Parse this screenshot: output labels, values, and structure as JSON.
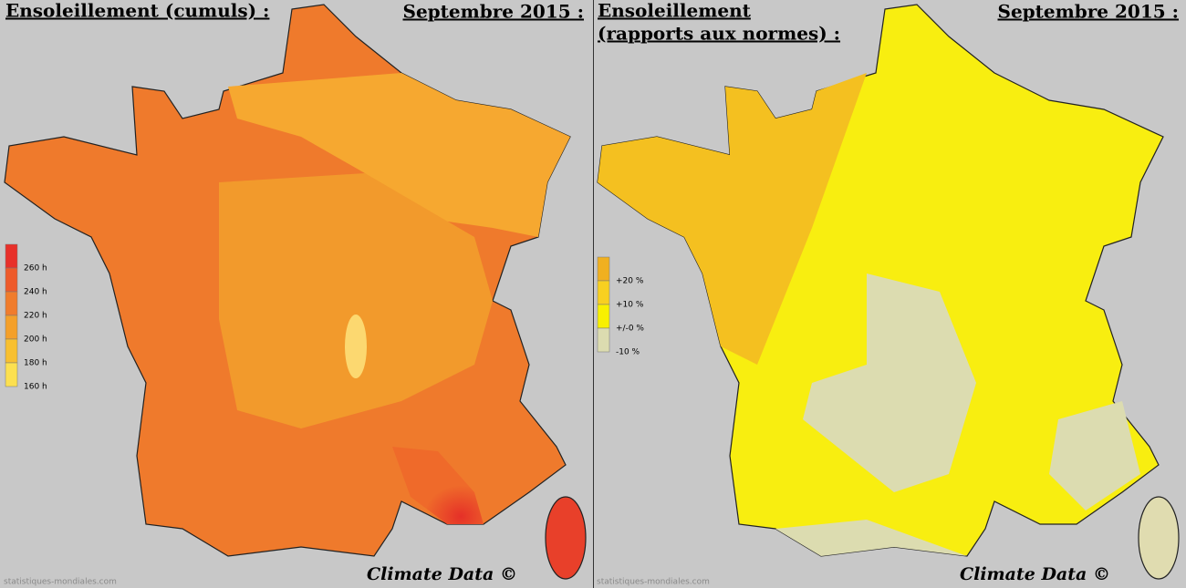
{
  "panels": [
    {
      "title": "Ensoleillement (cumuls) :",
      "date": "Septembre 2015 :",
      "credit": "Climate Data ©",
      "watermark": "statistiques-mondiales.com",
      "legend": [
        {
          "label": "260 h",
          "color": "#e8302a"
        },
        {
          "label": "240 h",
          "color": "#ee5a2a"
        },
        {
          "label": "220 h",
          "color": "#f07c2c"
        },
        {
          "label": "200 h",
          "color": "#f4a02a"
        },
        {
          "label": "180 h",
          "color": "#f8c030"
        },
        {
          "label": "160 h",
          "color": "#fce050"
        }
      ]
    },
    {
      "title": [
        "Ensoleillement",
        "(rapports aux normes) :"
      ],
      "date": "Septembre 2015 :",
      "credit": "Climate Data ©",
      "watermark": "statistiques-mondiales.com",
      "legend": [
        {
          "label": "+20 %",
          "color": "#f0b020"
        },
        {
          "label": "+10 %",
          "color": "#f8d020"
        },
        {
          "label": "+/-0 %",
          "color": "#f8f000"
        },
        {
          "label": "-10 %",
          "color": "#dcdcb0"
        }
      ]
    }
  ]
}
